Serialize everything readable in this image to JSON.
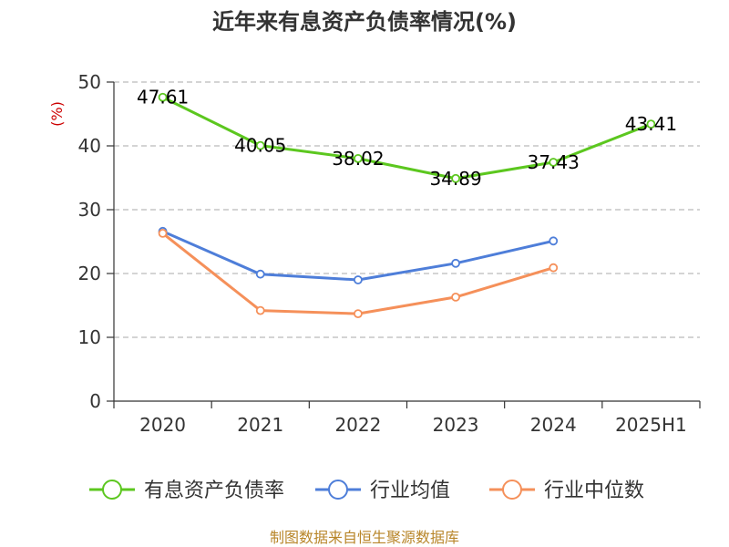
{
  "chart_data": {
    "type": "line",
    "title": "近年来有息资产负债率情况(%)",
    "ylabel": "(%)",
    "xlabel": "",
    "categories": [
      "2020",
      "2021",
      "2022",
      "2023",
      "2024",
      "2025H1"
    ],
    "ylim": [
      0,
      50
    ],
    "yticks": [
      "0",
      "10",
      "20",
      "30",
      "40",
      "50"
    ],
    "grid": "horizontal-dashed",
    "legend_position": "bottom",
    "series": [
      {
        "name": "有息资产负债率",
        "color": "#5cc71f",
        "values": [
          47.61,
          40.05,
          38.02,
          34.89,
          37.43,
          43.41
        ],
        "labels": [
          "47.61",
          "40.05",
          "38.02",
          "34.89",
          "37.43",
          "43.41"
        ]
      },
      {
        "name": "行业均值",
        "color": "#4e7ed9",
        "values": [
          26.6,
          19.9,
          19.0,
          21.6,
          25.1,
          null
        ]
      },
      {
        "name": "行业中位数",
        "color": "#f5905a",
        "values": [
          26.3,
          14.2,
          13.7,
          16.3,
          20.9,
          null
        ]
      }
    ]
  },
  "source": "制图数据来自恒生聚源数据库",
  "colors": {
    "unit": "#cc0000",
    "source": "#b8862a",
    "axis": "#333333",
    "grid": "#bbbbbb"
  }
}
